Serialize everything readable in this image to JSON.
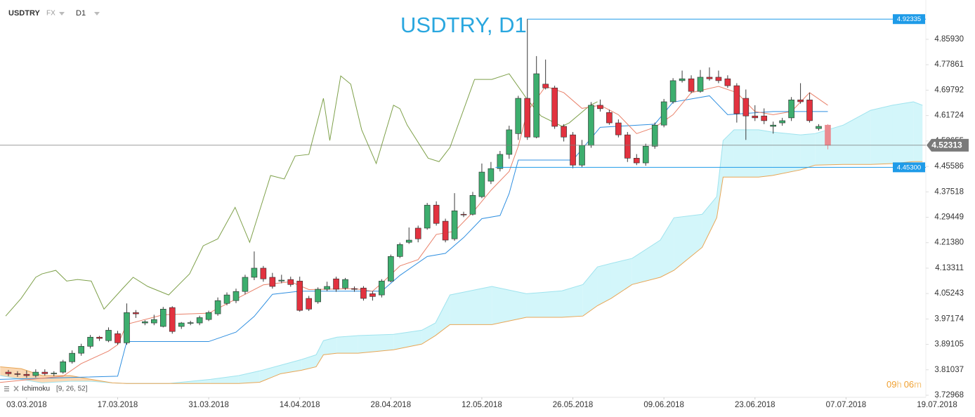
{
  "chart_data": {
    "type": "candlestick",
    "symbol": "USDTRY",
    "market": "FX",
    "timeframe": "D1",
    "title": "USDTRY, D1",
    "indicator": {
      "name": "Ichimoku",
      "params": "[9, 26, 52]"
    },
    "countdown": [
      "09",
      "h",
      "06",
      "m"
    ],
    "xlim": [
      -3,
      100
    ],
    "ylim": [
      3.723,
      4.984
    ],
    "xticks": [
      {
        "value": 0,
        "label": "03.03.2018"
      },
      {
        "value": 10,
        "label": "17.03.2018"
      },
      {
        "value": 20,
        "label": "31.03.2018"
      },
      {
        "value": 30,
        "label": "14.04.2018"
      },
      {
        "value": 40,
        "label": "28.04.2018"
      },
      {
        "value": 50,
        "label": "12.05.2018"
      },
      {
        "value": 60,
        "label": "26.05.2018"
      },
      {
        "value": 70,
        "label": "09.06.2018"
      },
      {
        "value": 80,
        "label": "23.06.2018"
      },
      {
        "value": 90,
        "label": "07.07.2018"
      },
      {
        "value": 100,
        "label": "19.07.2018"
      }
    ],
    "yticks": [
      {
        "value": 4.8593,
        "label": "4.85930"
      },
      4.77861,
      4.69792,
      4.61724,
      4.53655,
      4.45586,
      4.37518,
      4.29449,
      {
        "value": 4.2138,
        "label": "4.21380"
      },
      4.13311,
      4.05243,
      3.97174,
      3.89105,
      3.81037,
      3.72968
    ],
    "colors": {
      "up": "#3dae6e",
      "down": "#e2323f",
      "wick": "#3a3a3a",
      "last": "#ea8a90"
    },
    "candles": [
      {
        "x": -2,
        "open": 3.803,
        "high": 3.81,
        "low": 3.79,
        "close": 3.798
      },
      {
        "x": -1,
        "open": 3.798,
        "high": 3.806,
        "low": 3.788,
        "close": 3.796
      },
      {
        "x": 0,
        "open": 3.796,
        "high": 3.808,
        "low": 3.785,
        "close": 3.792
      },
      {
        "x": 1,
        "open": 3.792,
        "high": 3.812,
        "low": 3.786,
        "close": 3.803
      },
      {
        "x": 2,
        "open": 3.803,
        "high": 3.812,
        "low": 3.792,
        "close": 3.798
      },
      {
        "x": 3,
        "open": 3.798,
        "high": 3.806,
        "low": 3.79,
        "close": 3.8
      },
      {
        "x": 4,
        "open": 3.803,
        "high": 3.842,
        "low": 3.798,
        "close": 3.836
      },
      {
        "x": 5,
        "open": 3.836,
        "high": 3.872,
        "low": 3.83,
        "close": 3.863
      },
      {
        "x": 6,
        "open": 3.863,
        "high": 3.893,
        "low": 3.855,
        "close": 3.885
      },
      {
        "x": 7,
        "open": 3.885,
        "high": 3.921,
        "low": 3.878,
        "close": 3.914
      },
      {
        "x": 8,
        "open": 3.914,
        "high": 3.918,
        "low": 3.902,
        "close": 3.91
      },
      {
        "x": 9,
        "open": 3.903,
        "high": 3.945,
        "low": 3.898,
        "close": 3.936
      },
      {
        "x": 10,
        "open": 3.925,
        "high": 3.934,
        "low": 3.89,
        "close": 3.896
      },
      {
        "x": 11,
        "open": 3.896,
        "high": 4.021,
        "low": 3.89,
        "close": 3.992
      },
      {
        "x": 12,
        "open": 3.992,
        "high": 4.0,
        "low": 3.975,
        "close": 3.988
      },
      {
        "x": 13,
        "open": 3.959,
        "high": 3.968,
        "low": 3.952,
        "close": 3.963
      },
      {
        "x": 14,
        "open": 3.959,
        "high": 3.985,
        "low": 3.952,
        "close": 3.97
      },
      {
        "x": 15,
        "open": 3.948,
        "high": 4.01,
        "low": 3.945,
        "close": 4.003
      },
      {
        "x": 16,
        "open": 4.008,
        "high": 4.012,
        "low": 3.925,
        "close": 3.932
      },
      {
        "x": 17,
        "open": 3.948,
        "high": 3.962,
        "low": 3.94,
        "close": 3.959
      },
      {
        "x": 18,
        "open": 3.959,
        "high": 3.966,
        "low": 3.952,
        "close": 3.96
      },
      {
        "x": 19,
        "open": 3.959,
        "high": 3.982,
        "low": 3.952,
        "close": 3.976
      },
      {
        "x": 20,
        "open": 3.97,
        "high": 3.998,
        "low": 3.965,
        "close": 3.992
      },
      {
        "x": 21,
        "open": 3.988,
        "high": 4.04,
        "low": 3.982,
        "close": 4.03
      },
      {
        "x": 22,
        "open": 4.021,
        "high": 4.056,
        "low": 4.015,
        "close": 4.048
      },
      {
        "x": 23,
        "open": 4.03,
        "high": 4.068,
        "low": 4.022,
        "close": 4.059
      },
      {
        "x": 24,
        "open": 4.059,
        "high": 4.112,
        "low": 4.05,
        "close": 4.104
      },
      {
        "x": 25,
        "open": 4.104,
        "high": 4.186,
        "low": 4.095,
        "close": 4.133
      },
      {
        "x": 26,
        "open": 4.133,
        "high": 4.14,
        "low": 4.09,
        "close": 4.099
      },
      {
        "x": 27,
        "open": 4.104,
        "high": 4.118,
        "low": 4.068,
        "close": 4.075
      },
      {
        "x": 28,
        "open": 4.092,
        "high": 4.112,
        "low": 4.085,
        "close": 4.095
      },
      {
        "x": 29,
        "open": 4.097,
        "high": 4.106,
        "low": 4.074,
        "close": 4.081
      },
      {
        "x": 30,
        "open": 4.092,
        "high": 4.106,
        "low": 3.995,
        "close": 3.999
      },
      {
        "x": 31,
        "open": 4.037,
        "high": 4.045,
        "low": 3.997,
        "close": 4.003
      },
      {
        "x": 32,
        "open": 4.026,
        "high": 4.072,
        "low": 4.02,
        "close": 4.066
      },
      {
        "x": 33,
        "open": 4.066,
        "high": 4.09,
        "low": 4.06,
        "close": 4.075
      },
      {
        "x": 34,
        "open": 4.099,
        "high": 4.106,
        "low": 4.058,
        "close": 4.066
      },
      {
        "x": 35,
        "open": 4.07,
        "high": 4.102,
        "low": 4.064,
        "close": 4.097
      },
      {
        "x": 36,
        "open": 4.068,
        "high": 4.075,
        "low": 4.058,
        "close": 4.066
      },
      {
        "x": 37,
        "open": 4.07,
        "high": 4.076,
        "low": 4.03,
        "close": 4.037
      },
      {
        "x": 38,
        "open": 4.052,
        "high": 4.06,
        "low": 4.03,
        "close": 4.043
      },
      {
        "x": 39,
        "open": 4.048,
        "high": 4.098,
        "low": 4.04,
        "close": 4.092
      },
      {
        "x": 40,
        "open": 4.092,
        "high": 4.176,
        "low": 4.088,
        "close": 4.17
      },
      {
        "x": 41,
        "open": 4.17,
        "high": 4.214,
        "low": 4.165,
        "close": 4.208
      },
      {
        "x": 42,
        "open": 4.215,
        "high": 4.262,
        "low": 4.21,
        "close": 4.222
      },
      {
        "x": 43,
        "open": 4.26,
        "high": 4.268,
        "low": 4.215,
        "close": 4.226
      },
      {
        "x": 44,
        "open": 4.26,
        "high": 4.34,
        "low": 4.255,
        "close": 4.333
      },
      {
        "x": 45,
        "open": 4.333,
        "high": 4.345,
        "low": 4.268,
        "close": 4.275
      },
      {
        "x": 46,
        "open": 4.282,
        "high": 4.29,
        "low": 4.215,
        "close": 4.222
      },
      {
        "x": 47,
        "open": 4.226,
        "high": 4.371,
        "low": 4.22,
        "close": 4.315
      },
      {
        "x": 48,
        "open": 4.304,
        "high": 4.312,
        "low": 4.295,
        "close": 4.302
      },
      {
        "x": 49,
        "open": 4.304,
        "high": 4.375,
        "low": 4.3,
        "close": 4.364
      },
      {
        "x": 50,
        "open": 4.36,
        "high": 4.465,
        "low": 4.355,
        "close": 4.438
      },
      {
        "x": 51,
        "open": 4.409,
        "high": 4.47,
        "low": 4.4,
        "close": 4.449
      },
      {
        "x": 52,
        "open": 4.449,
        "high": 4.505,
        "low": 4.44,
        "close": 4.494
      },
      {
        "x": 53,
        "open": 4.494,
        "high": 4.585,
        "low": 4.48,
        "close": 4.572
      },
      {
        "x": 54,
        "open": 4.56,
        "high": 4.68,
        "low": 4.54,
        "close": 4.672
      },
      {
        "x": 55,
        "open": 4.672,
        "high": 4.924,
        "low": 4.54,
        "close": 4.549
      },
      {
        "x": 56,
        "open": 4.549,
        "high": 4.806,
        "low": 4.545,
        "close": 4.75
      },
      {
        "x": 57,
        "open": 4.717,
        "high": 4.795,
        "low": 4.7,
        "close": 4.705
      },
      {
        "x": 58,
        "open": 4.705,
        "high": 4.712,
        "low": 4.575,
        "close": 4.583
      },
      {
        "x": 59,
        "open": 4.583,
        "high": 4.59,
        "low": 4.535,
        "close": 4.549
      },
      {
        "x": 60,
        "open": 4.556,
        "high": 4.565,
        "low": 4.45,
        "close": 4.46
      },
      {
        "x": 61,
        "open": 4.46,
        "high": 4.54,
        "low": 4.452,
        "close": 4.523
      },
      {
        "x": 62,
        "open": 4.523,
        "high": 4.66,
        "low": 4.515,
        "close": 4.65
      },
      {
        "x": 63,
        "open": 4.65,
        "high": 4.668,
        "low": 4.63,
        "close": 4.639
      },
      {
        "x": 64,
        "open": 4.627,
        "high": 4.636,
        "low": 4.588,
        "close": 4.594
      },
      {
        "x": 65,
        "open": 4.594,
        "high": 4.605,
        "low": 4.548,
        "close": 4.556
      },
      {
        "x": 66,
        "open": 4.556,
        "high": 4.565,
        "low": 4.47,
        "close": 4.482
      },
      {
        "x": 67,
        "open": 4.482,
        "high": 4.495,
        "low": 4.46,
        "close": 4.467
      },
      {
        "x": 68,
        "open": 4.467,
        "high": 4.528,
        "low": 4.458,
        "close": 4.52
      },
      {
        "x": 69,
        "open": 4.52,
        "high": 4.595,
        "low": 4.512,
        "close": 4.587
      },
      {
        "x": 70,
        "open": 4.587,
        "high": 4.67,
        "low": 4.58,
        "close": 4.661
      },
      {
        "x": 71,
        "open": 4.661,
        "high": 4.736,
        "low": 4.655,
        "close": 4.728
      },
      {
        "x": 72,
        "open": 4.728,
        "high": 4.76,
        "low": 4.722,
        "close": 4.734
      },
      {
        "x": 73,
        "open": 4.734,
        "high": 4.745,
        "low": 4.688,
        "close": 4.694
      },
      {
        "x": 74,
        "open": 4.694,
        "high": 4.762,
        "low": 4.69,
        "close": 4.739
      },
      {
        "x": 75,
        "open": 4.739,
        "high": 4.77,
        "low": 4.728,
        "close": 4.734
      },
      {
        "x": 76,
        "open": 4.739,
        "high": 4.76,
        "low": 4.72,
        "close": 4.728
      },
      {
        "x": 77,
        "open": 4.734,
        "high": 4.745,
        "low": 4.705,
        "close": 4.712
      },
      {
        "x": 78,
        "open": 4.712,
        "high": 4.72,
        "low": 4.595,
        "close": 4.623
      },
      {
        "x": 79,
        "open": 4.672,
        "high": 4.7,
        "low": 4.54,
        "close": 4.616
      },
      {
        "x": 80,
        "open": 4.616,
        "high": 4.65,
        "low": 4.6,
        "close": 4.61
      },
      {
        "x": 81,
        "open": 4.616,
        "high": 4.64,
        "low": 4.59,
        "close": 4.601
      },
      {
        "x": 82,
        "open": 4.583,
        "high": 4.598,
        "low": 4.56,
        "close": 4.587
      },
      {
        "x": 83,
        "open": 4.594,
        "high": 4.61,
        "low": 4.585,
        "close": 4.601
      },
      {
        "x": 84,
        "open": 4.61,
        "high": 4.676,
        "low": 4.6,
        "close": 4.667
      },
      {
        "x": 85,
        "open": 4.667,
        "high": 4.72,
        "low": 4.655,
        "close": 4.661
      },
      {
        "x": 86,
        "open": 4.667,
        "high": 4.69,
        "low": 4.595,
        "close": 4.601
      },
      {
        "x": 87,
        "open": 4.576,
        "high": 4.59,
        "low": 4.57,
        "close": 4.583
      },
      {
        "x": 88,
        "open": 4.587,
        "high": 4.59,
        "low": 4.51,
        "close": 4.523
      }
    ],
    "tenkan": {
      "color": "#e9826b",
      "x": [
        -3,
        4,
        6,
        9,
        10,
        11,
        15,
        20,
        22,
        24,
        26,
        29,
        31,
        36,
        38,
        39,
        41,
        43,
        45,
        47,
        49,
        51,
        53,
        54,
        55,
        57,
        59,
        61,
        63,
        65,
        67,
        69,
        71,
        73,
        76,
        78,
        80,
        82,
        84,
        86,
        88
      ],
      "values": [
        3.77,
        3.79,
        3.83,
        3.87,
        3.89,
        3.955,
        3.985,
        3.99,
        4.02,
        4.05,
        4.08,
        4.09,
        4.065,
        4.068,
        4.06,
        4.085,
        4.14,
        4.16,
        4.24,
        4.25,
        4.31,
        4.38,
        4.44,
        4.52,
        4.63,
        4.71,
        4.69,
        4.64,
        4.65,
        4.62,
        4.56,
        4.58,
        4.62,
        4.69,
        4.71,
        4.69,
        4.63,
        4.62,
        4.63,
        4.69,
        4.65
      ]
    },
    "kijun": {
      "color": "#2f8fe0",
      "x": [
        -3,
        10,
        11,
        20,
        23,
        25,
        27,
        30,
        39,
        41,
        44,
        46,
        48,
        50,
        52,
        53,
        54,
        60,
        63,
        69,
        71,
        75,
        77,
        82,
        88
      ],
      "values": [
        3.78,
        3.79,
        3.9,
        3.9,
        3.93,
        3.98,
        4.05,
        4.06,
        4.06,
        4.11,
        4.17,
        4.18,
        4.23,
        4.29,
        4.3,
        4.37,
        4.476,
        4.476,
        4.58,
        4.59,
        4.66,
        4.68,
        4.62,
        4.63,
        4.63
      ]
    },
    "chikou": {
      "color": "#7ea04a",
      "x": [
        -2.3,
        -0.6,
        1.0,
        1.7,
        3.2,
        4.4,
        5.6,
        7.1,
        8.5,
        10.6,
        11.7,
        13.3,
        15.6,
        17.9,
        19.4,
        21.0,
        22.9,
        24.5,
        26.8,
        28.3,
        29.5,
        31.0,
        32.6,
        33.3,
        34.5,
        35.6,
        36.8,
        38.4,
        40.3,
        41.0,
        41.8,
        44.1,
        45.3,
        46.5,
        49.2,
        51.1,
        53.0,
        54.9,
        56.5,
        58.8,
        59.6,
        61.9,
        62.7
      ],
      "values": [
        3.981,
        4.037,
        4.104,
        4.115,
        4.126,
        4.092,
        4.097,
        4.092,
        4.003,
        4.07,
        4.104,
        4.075,
        4.048,
        4.115,
        4.204,
        4.226,
        4.326,
        4.215,
        4.427,
        4.416,
        4.489,
        4.494,
        4.672,
        4.538,
        4.743,
        4.717,
        4.572,
        4.465,
        4.65,
        4.639,
        4.587,
        4.482,
        4.471,
        4.516,
        4.732,
        4.732,
        4.75,
        4.672,
        4.616,
        4.583,
        4.594,
        4.65,
        4.661
      ]
    },
    "cloud": {
      "color_a": "#9fe3ee",
      "color_b": "#e8a655",
      "fill_up": "#d3f6fa",
      "fill_down": "#fad8b4",
      "x": [
        -2.9,
        -0.6,
        1.7,
        4.8,
        7.1,
        9.4,
        11.0,
        15.6,
        20.2,
        23.3,
        25.6,
        27.9,
        30.2,
        31.8,
        32.6,
        34.1,
        36.4,
        40.3,
        43.4,
        44.9,
        46.5,
        51.1,
        54.9,
        58.8,
        61.1,
        62.7,
        64.2,
        66.5,
        69.6,
        71.1,
        74.2,
        75.8,
        76.5,
        77.7,
        80.4,
        81.9,
        85.0,
        86.6,
        89.7,
        92.7,
        95.1,
        97.4,
        98.4
      ],
      "senkou_a": [
        3.792,
        3.78,
        3.769,
        3.774,
        3.774,
        3.769,
        3.767,
        3.767,
        3.78,
        3.792,
        3.807,
        3.825,
        3.843,
        3.858,
        3.903,
        3.914,
        3.919,
        3.923,
        3.936,
        3.959,
        4.048,
        4.075,
        4.052,
        4.061,
        4.081,
        4.137,
        4.148,
        4.164,
        4.222,
        4.293,
        4.304,
        4.36,
        4.538,
        4.572,
        4.572,
        4.565,
        4.556,
        4.56,
        4.587,
        4.634,
        4.65,
        4.661,
        4.65
      ],
      "senkou_b": [
        3.82,
        3.814,
        3.792,
        3.792,
        3.78,
        3.769,
        3.767,
        3.767,
        3.767,
        3.767,
        3.771,
        3.798,
        3.809,
        3.82,
        3.858,
        3.863,
        3.863,
        3.874,
        3.892,
        3.919,
        3.954,
        3.954,
        3.977,
        3.977,
        3.981,
        4.014,
        4.037,
        4.081,
        4.104,
        4.126,
        4.199,
        4.293,
        4.422,
        4.422,
        4.422,
        4.427,
        4.445,
        4.46,
        4.462,
        4.462,
        4.465,
        4.471,
        4.471
      ]
    },
    "levels": [
      {
        "value": 4.92335,
        "from": 55,
        "color": "#1e9be8"
      },
      {
        "value": 4.453,
        "value_label": "4.45300",
        "from": 51.5,
        "color": "#1e9be8"
      }
    ],
    "current_price": {
      "value": 4.52313,
      "color": "#7a7a7a"
    }
  }
}
